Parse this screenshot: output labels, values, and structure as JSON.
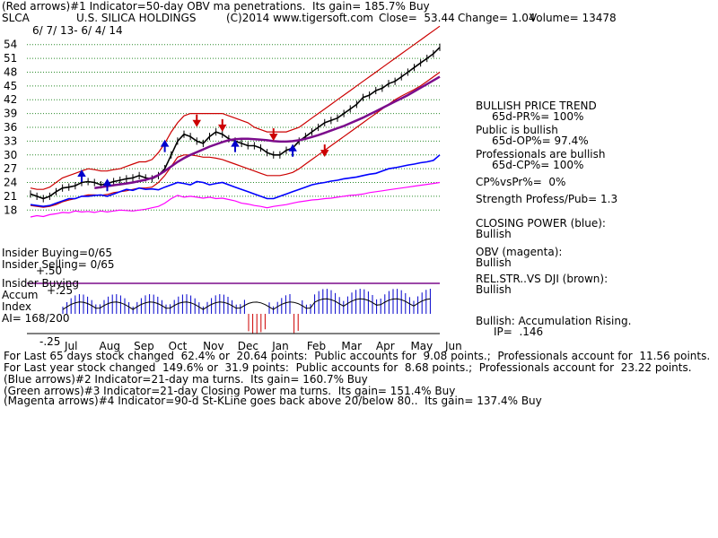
{
  "header": {
    "line1": "(Red arrows)#1 Indicator=50-day OBV ma penetrations.  Its gain= 185.7% Buy",
    "symbol": "SLCA",
    "company": "U.S. SILICA HOLDINGS",
    "copyright": "(C)2014 www.tigersoft.com",
    "close": "Close=  53.44",
    "change": "Change= 1.04",
    "volume": "Volume= 13478",
    "daterange": "6/ 7/ 13- 6/ 4/ 14"
  },
  "left_labels": {
    "insider_buying1": "Insider Buying=0/65",
    "insider_selling": "Insider Selling= 0/65",
    "insider_buying2": "Insider Buying",
    "accum": "Accum",
    "index": "Index",
    "ai": "AI= 168/200",
    "p25": "+.25",
    "p50": "+.50",
    "m25": "-.25"
  },
  "right_panel": {
    "trend_title": "BULLISH PRICE TREND",
    "pr": "65d-PR%= 100%",
    "public": "Public is bullish",
    "op": "65d-OP%= 97.4%",
    "prof": "Professionals are bullish",
    "cp": "65d-CP%= 100%",
    "cpvspr": "CP%vsPr%=  0%",
    "strength": "Strength Profess/Pub= 1.3",
    "closing_power": "CLOSING POWER (blue):",
    "cp_status": "Bullish",
    "obv": "OBV (magenta):",
    "obv_status": "Bullish",
    "relstr": "REL.STR..VS DJI (brown):",
    "relstr_status": "Bullish",
    "accum": "Bullish: Accumulation Rising.",
    "ip": "IP=  .146"
  },
  "footer": {
    "line1": "For Last 65 days stock changed  62.4% or  20.64 points:  Public accounts for  9.08 points.;  Professionals account for  11.56 points.",
    "line2": "For Last year stock changed  149.6% or  31.9 points:  Public accounts for  8.68 points.;  Professionals account for  23.22 points.",
    "line3": "(Blue arrows)#2 Indicator=21-day ma turns.  Its gain= 160.7% Buy",
    "line4": "(Green arrows)#3 Indicator=21-day Closing Power ma turns.  Its gain= 151.4% Buy",
    "line5": "(Magenta arrows)#4 Indicator=90-d St-KLine goes back above 20/below 80..  Its gain= 137.4% Buy"
  },
  "chart_data": {
    "type": "line",
    "y_ticks": [
      18,
      21,
      24,
      27,
      30,
      33,
      36,
      39,
      42,
      45,
      48,
      51,
      54
    ],
    "ylim": [
      16.5,
      55.5
    ],
    "months": [
      "Jul",
      "Aug",
      "Sep",
      "Oct",
      "Nov",
      "Dec",
      "Jan",
      "Feb",
      "Mar",
      "Apr",
      "May",
      "Jun"
    ],
    "series": [
      {
        "role": "price",
        "color": "#000000",
        "values": [
          21.5,
          21,
          20.5,
          21,
          22,
          22.8,
          23,
          23.3,
          24,
          24.2,
          24,
          23.5,
          23.8,
          24.2,
          24.5,
          24.8,
          25,
          25.5,
          25,
          24.8,
          25.5,
          27,
          30,
          33,
          34.5,
          34,
          33,
          32.5,
          34,
          35,
          34.5,
          33.5,
          33,
          32.5,
          32,
          32,
          31.5,
          30.5,
          30,
          30,
          31,
          31.5,
          33,
          34,
          35,
          36,
          37,
          37.5,
          38,
          39,
          40,
          41,
          42.5,
          43,
          44,
          44.5,
          45.5,
          46,
          47,
          48,
          49,
          50,
          51,
          52,
          53.4
        ]
      },
      {
        "role": "upper-band",
        "color": "#cc0000",
        "values": [
          22.8,
          22.5,
          22.5,
          23,
          24,
          25,
          25.5,
          26,
          26.5,
          27,
          26.8,
          26.5,
          26.5,
          26.8,
          27,
          27.5,
          28,
          28.5,
          28.5,
          29,
          30.5,
          32.5,
          35,
          37,
          38.5,
          39,
          39,
          39,
          39,
          39,
          39,
          38.5,
          38,
          37.5,
          37,
          36,
          35.5,
          35,
          35,
          35,
          35,
          35.5,
          36,
          37,
          38,
          39,
          40,
          41,
          42,
          43,
          44,
          45,
          46,
          47,
          48,
          49,
          50,
          51,
          52,
          53,
          54,
          55,
          56,
          57,
          58
        ]
      },
      {
        "role": "lower-band",
        "color": "#cc0000",
        "values": [
          19,
          18.8,
          18.6,
          18.8,
          19.2,
          19.8,
          20.2,
          20.5,
          21,
          21.3,
          21.3,
          21.2,
          21.4,
          21.8,
          22,
          22.2,
          22.5,
          22.8,
          22.8,
          23,
          24,
          25.5,
          27.5,
          29.5,
          30,
          30,
          29.8,
          29.5,
          29.5,
          29.3,
          29,
          28.5,
          28,
          27.5,
          27,
          26.5,
          26,
          25.5,
          25.5,
          25.5,
          25.8,
          26.2,
          27,
          28,
          29,
          30,
          31,
          32,
          33,
          34,
          35,
          36,
          37,
          38,
          39,
          40,
          41,
          42,
          42.8,
          43.5,
          44.2,
          45,
          46,
          47,
          48
        ]
      },
      {
        "role": "ma",
        "color": "#7b0c8c",
        "values": [
          null,
          null,
          null,
          null,
          null,
          null,
          null,
          null,
          null,
          null,
          22.8,
          23,
          23.2,
          23.4,
          23.6,
          23.8,
          24,
          24.3,
          24.6,
          25,
          25.6,
          26.5,
          27.5,
          28.5,
          29.3,
          30,
          30.6,
          31.2,
          31.8,
          32.3,
          32.8,
          33.2,
          33.4,
          33.5,
          33.5,
          33.4,
          33.3,
          33.2,
          33,
          32.9,
          32.9,
          33,
          33.2,
          33.5,
          33.9,
          34.3,
          34.8,
          35.3,
          35.8,
          36.3,
          36.9,
          37.5,
          38.1,
          38.8,
          39.5,
          40.2,
          40.9,
          41.6,
          42.3,
          43,
          43.8,
          44.6,
          45.4,
          46.2,
          47
        ]
      },
      {
        "role": "closing-power",
        "color": "#0000ff",
        "values": [
          19.2,
          19,
          18.8,
          19,
          19.5,
          20,
          20.5,
          20.5,
          21,
          21,
          21.2,
          21.3,
          21,
          21.5,
          22,
          22.5,
          22.3,
          22.8,
          22.5,
          22.6,
          22.4,
          23,
          23.5,
          24,
          23.8,
          23.5,
          24.2,
          24,
          23.5,
          23.8,
          24,
          23.5,
          23,
          22.5,
          22,
          21.5,
          21,
          20.5,
          20.5,
          21,
          21.5,
          22,
          22.5,
          23,
          23.5,
          23.8,
          24,
          24.3,
          24.5,
          24.8,
          25,
          25.2,
          25.5,
          25.8,
          26,
          26.5,
          27,
          27.2,
          27.5,
          27.8,
          28,
          28.3,
          28.5,
          28.8,
          30
        ]
      },
      {
        "role": "obv",
        "color": "#ff00ff",
        "values": [
          16.5,
          16.8,
          16.6,
          17,
          17.2,
          17.5,
          17.4,
          17.8,
          17.6,
          17.7,
          17.5,
          17.8,
          17.6,
          17.8,
          18,
          17.9,
          17.8,
          18,
          18.2,
          18.5,
          18.8,
          19.5,
          20.5,
          21.2,
          20.8,
          21,
          20.8,
          20.6,
          20.8,
          20.5,
          20.6,
          20.3,
          20,
          19.5,
          19.3,
          19,
          18.8,
          18.5,
          18.8,
          19,
          19.2,
          19.5,
          19.8,
          20,
          20.2,
          20.3,
          20.5,
          20.6,
          20.8,
          21,
          21.2,
          21.3,
          21.5,
          21.8,
          22,
          22.2,
          22.4,
          22.6,
          22.8,
          23,
          23.2,
          23.4,
          23.6,
          23.8,
          24
        ]
      }
    ],
    "buy_arrows_price": [
      24.5,
      22.5,
      31,
      31,
      30
    ],
    "sell_arrows_price": [
      38,
      37,
      35,
      31.5
    ]
  }
}
